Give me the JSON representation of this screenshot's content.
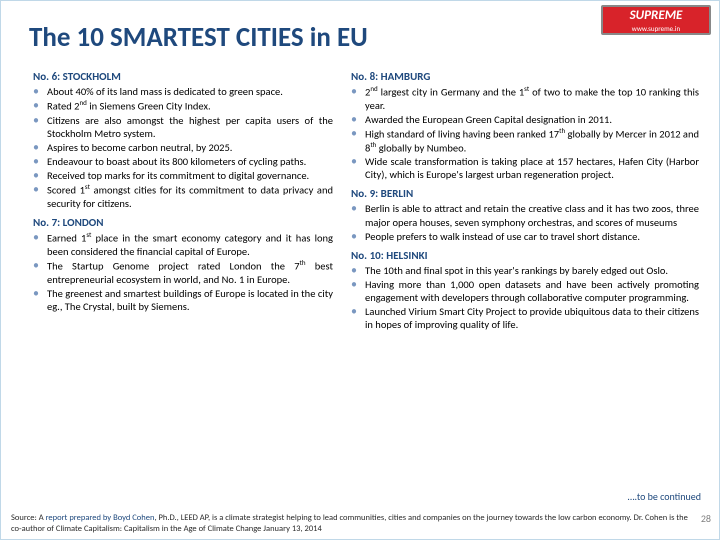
{
  "logo": {
    "brand": "SUPREME",
    "url": "www.supreme.in"
  },
  "title": "The 10 SMARTEST CITIES in EU",
  "left": [
    {
      "head": "No. 6: STOCKHOLM",
      "items": [
        "About 40% of its land mass is dedicated to green space.",
        "Rated 2<sup>nd</sup> in Siemens Green City Index.",
        "Citizens are also amongst the highest per capita users of the Stockholm Metro system.",
        "Aspires to become carbon neutral, by 2025.",
        "Endeavour to boast about its 800 kilometers of cycling paths.",
        "Received top marks for its commitment to digital governance.",
        "Scored 1<sup>st</sup> amongst cities for its commitment to data privacy and security for citizens."
      ]
    },
    {
      "head": "No. 7: LONDON",
      "items": [
        "Earned 1<sup>st</sup> place in the smart economy category and it has long been considered the financial capital of Europe.",
        "The Startup Genome project rated London the 7<sup>th</sup> best entrepreneurial ecosystem in world, and No. 1 in Europe.",
        "The greenest and smartest buildings of Europe is located in the city eg., The Crystal, built by Siemens."
      ]
    }
  ],
  "right": [
    {
      "head": "No. 8: HAMBURG",
      "items": [
        "2<sup>nd</sup> largest city in Germany and the 1<sup>st</sup> of two to make the top 10 ranking this year.",
        "Awarded the European Green Capital designation in 2011.",
        "High standard of living having been ranked 17<sup>th</sup> globally by Mercer in 2012 and 8<sup>th</sup> globally by Numbeo.",
        "Wide scale transformation is taking place at 157 hectares, Hafen City (Harbor City), which is Europe's largest urban regeneration project."
      ]
    },
    {
      "head": "No. 9: BERLIN",
      "items": [
        "Berlin is able to attract and retain the creative class and it has two zoos, three major opera houses, seven symphony orchestras, and scores of museums",
        "People prefers to walk instead of use car to travel short distance."
      ]
    },
    {
      "head": "No. 10: HELSINKI",
      "items": [
        "The 10th and final spot in this year's rankings by barely edged out Oslo.",
        "Having more than 1,000 open datasets and have been actively promoting engagement with developers through collaborative computer programming.",
        "Launched Virium Smart City Project to provide ubiquitous data to their citizens in hopes of improving quality of life."
      ]
    }
  ],
  "tbc": "….to be continued",
  "source_prefix": "Source: A ",
  "source_hl": "report prepared by Boyd Cohen",
  "source_rest": ", Ph.D., LEED AP, is a climate strategist helping to lead communities, cities and companies on the journey towards the low carbon economy. Dr. Cohen is the co-author of Climate Capitalism: Capitalism in the Age of Climate Change January 13, 2014",
  "pagenum": "28"
}
